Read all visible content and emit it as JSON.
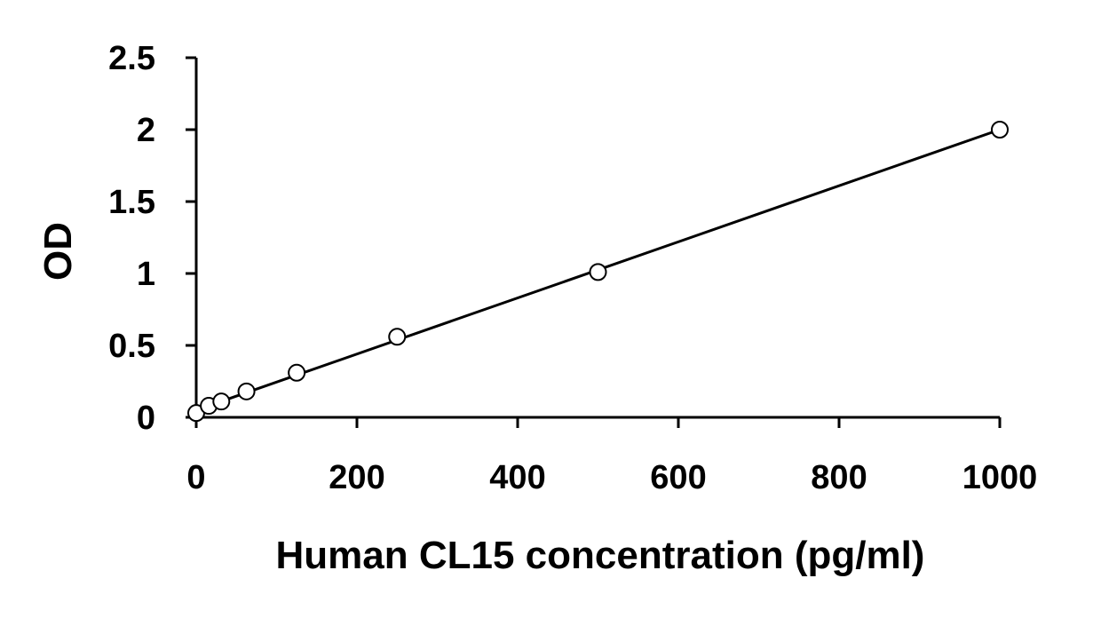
{
  "chart_data": {
    "type": "scatter",
    "title": "",
    "xlabel": "Human CL15 concentration (pg/ml)",
    "ylabel": "OD",
    "xlim": [
      0,
      1000
    ],
    "ylim": [
      0,
      2.5
    ],
    "xticks": [
      0,
      200,
      400,
      600,
      800,
      1000
    ],
    "yticks": [
      0,
      0.5,
      1,
      1.5,
      2,
      2.5
    ],
    "xtick_labels": [
      "0",
      "200",
      "400",
      "600",
      "800",
      "1000"
    ],
    "ytick_labels": [
      "0",
      "0.5",
      "1",
      "1.5",
      "2",
      "2.5"
    ],
    "grid": false,
    "series": [
      {
        "x": [
          0,
          15.6,
          31.25,
          62.5,
          125,
          250,
          500,
          1000
        ],
        "y": [
          0.03,
          0.08,
          0.11,
          0.18,
          0.31,
          0.56,
          1.01,
          2.0
        ]
      }
    ],
    "trendline": {
      "x": [
        0,
        1000
      ],
      "y": [
        0.05,
        2.0
      ]
    },
    "colors": {
      "axis": "#000000",
      "marker_fill": "#ffffff",
      "marker_stroke": "#000000",
      "line": "#000000"
    }
  }
}
